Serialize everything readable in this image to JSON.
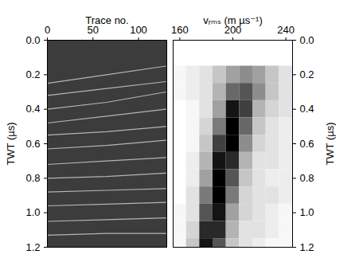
{
  "chart_data": [
    {
      "type": "line",
      "xlabel": "Trace no.",
      "ylabel": "TWT (µs)",
      "x": [
        0,
        65,
        130
      ],
      "series": [
        {
          "values": [
            0.25,
            0.2,
            0.15
          ]
        },
        {
          "values": [
            0.32,
            0.28,
            0.24
          ]
        },
        {
          "values": [
            0.4,
            0.36,
            0.3
          ]
        },
        {
          "values": [
            0.48,
            0.44,
            0.4
          ]
        },
        {
          "values": [
            0.55,
            0.53,
            0.5
          ]
        },
        {
          "values": [
            0.63,
            0.61,
            0.58
          ]
        },
        {
          "values": [
            0.72,
            0.7,
            0.68
          ]
        },
        {
          "values": [
            0.8,
            0.79,
            0.77
          ]
        },
        {
          "values": [
            0.88,
            0.87,
            0.86
          ]
        },
        {
          "values": [
            0.96,
            0.95,
            0.94
          ]
        },
        {
          "values": [
            1.05,
            1.04,
            1.03
          ]
        },
        {
          "values": [
            1.13,
            1.12,
            1.12
          ]
        }
      ],
      "color": "#b4b4b4",
      "xlim": [
        0,
        131
      ],
      "xticks": [
        0,
        50,
        100
      ],
      "ylim": [
        0,
        1.2
      ],
      "yticks": [
        {
          "value": 0,
          "label": "0.0"
        },
        0.2,
        0.4,
        0.6,
        0.8,
        {
          "value": 1,
          "label": "1.0"
        },
        1.2
      ]
    },
    {
      "type": "heatmap",
      "xlabel": "vᵣₘₛ (m µs⁻¹)",
      "ylabel": "TWT (µs)",
      "x": [
        160,
        170,
        180,
        190,
        200,
        210,
        220,
        230,
        240
      ],
      "y": [
        0.2,
        0.3,
        0.4,
        0.5,
        0.6,
        0.7,
        0.8,
        0.9,
        1.0,
        1.1,
        1.2
      ],
      "values": [
        [
          0.2,
          0.25,
          0.3,
          0.4,
          0.5,
          0.55,
          0.5,
          0.4,
          0.3
        ],
        [
          0.2,
          0.25,
          0.3,
          0.45,
          0.65,
          0.7,
          0.55,
          0.4,
          0.3
        ],
        [
          0.15,
          0.2,
          0.3,
          0.5,
          0.85,
          0.75,
          0.45,
          0.35,
          0.3
        ],
        [
          0.15,
          0.2,
          0.35,
          0.6,
          0.9,
          0.65,
          0.4,
          0.3,
          0.25
        ],
        [
          0.15,
          0.2,
          0.4,
          0.75,
          0.9,
          0.55,
          0.35,
          0.3,
          0.25
        ],
        [
          0.15,
          0.25,
          0.45,
          0.85,
          0.8,
          0.45,
          0.3,
          0.3,
          0.25
        ],
        [
          0.15,
          0.25,
          0.5,
          0.9,
          0.7,
          0.4,
          0.3,
          0.25,
          0.25
        ],
        [
          0.15,
          0.3,
          0.6,
          0.9,
          0.6,
          0.35,
          0.3,
          0.3,
          0.25
        ],
        [
          0.2,
          0.3,
          0.7,
          0.85,
          0.5,
          0.35,
          0.3,
          0.25,
          0.2
        ],
        [
          0.2,
          0.35,
          0.8,
          0.8,
          0.45,
          0.3,
          0.3,
          0.25,
          0.2
        ],
        [
          0.2,
          0.4,
          0.85,
          0.7,
          0.4,
          0.3,
          0.25,
          0.2,
          0.2
        ]
      ],
      "xlim": [
        155,
        245
      ],
      "xticks": [
        160,
        200,
        240
      ],
      "ylim": [
        0,
        1.2
      ],
      "yticks": [
        {
          "value": 0,
          "label": "0.0"
        },
        0.2,
        0.4,
        0.6,
        0.8,
        {
          "value": 1,
          "label": "1.0"
        },
        1.2
      ]
    }
  ]
}
